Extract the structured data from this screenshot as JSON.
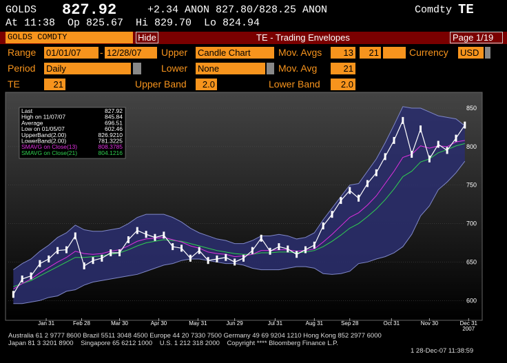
{
  "header": {
    "ticker": "GOLDS",
    "price": "827.92",
    "quote": "+2.34 ANON 827.80/828.25 ANON",
    "source": "Comdty",
    "function": "TE",
    "time_line": "At 11:38  Op 825.67  Hi 829.70  Lo 824.94"
  },
  "toolbar": {
    "security": "GOLDS COMDTY",
    "hide_button": "Hide",
    "title": "TE - Trading Envelopes",
    "page": "Page 1/19"
  },
  "form": {
    "range_label": "Range",
    "range_start": "01/01/07",
    "range_sep": "-",
    "range_end": "12/28/07",
    "upper_label": "Upper",
    "upper_value": "Candle Chart",
    "mov_avgs_label": "Mov. Avgs",
    "mov_avg_1": "13",
    "mov_avg_2": "21",
    "currency_label": "Currency",
    "currency_value": "USD",
    "period_label": "Period",
    "period_value": "Daily",
    "lower_label": "Lower",
    "lower_value": "None",
    "mov_avg_label": "Mov. Avg",
    "mov_avg_value": "21",
    "te_label": "TE",
    "te_value": "21",
    "upper_band_label": "Upper Band",
    "upper_band_value": "2.0",
    "lower_band_label": "Lower Band",
    "lower_band_value": "2.0"
  },
  "chart_data": {
    "type": "line",
    "x": [
      "2007-01-05",
      "2007-01-12",
      "2007-01-19",
      "2007-01-26",
      "2007-02-02",
      "2007-02-09",
      "2007-02-16",
      "2007-02-23",
      "2007-03-02",
      "2007-03-09",
      "2007-03-16",
      "2007-03-23",
      "2007-03-30",
      "2007-04-06",
      "2007-04-13",
      "2007-04-20",
      "2007-04-27",
      "2007-05-04",
      "2007-05-11",
      "2007-05-18",
      "2007-05-25",
      "2007-06-01",
      "2007-06-08",
      "2007-06-15",
      "2007-06-22",
      "2007-06-29",
      "2007-07-06",
      "2007-07-13",
      "2007-07-20",
      "2007-07-27",
      "2007-08-03",
      "2007-08-10",
      "2007-08-17",
      "2007-08-24",
      "2007-08-31",
      "2007-09-07",
      "2007-09-14",
      "2007-09-21",
      "2007-09-28",
      "2007-10-05",
      "2007-10-12",
      "2007-10-19",
      "2007-10-26",
      "2007-11-02",
      "2007-11-09",
      "2007-11-16",
      "2007-11-23",
      "2007-11-30",
      "2007-12-07",
      "2007-12-14",
      "2007-12-21",
      "2007-12-28"
    ],
    "series": [
      {
        "name": "Last",
        "color": "#ffffff",
        "last_label": "827.92",
        "values": [
          608,
          628,
          632,
          648,
          654,
          665,
          666,
          684,
          645,
          652,
          655,
          662,
          662,
          679,
          691,
          686,
          682,
          685,
          670,
          668,
          655,
          665,
          652,
          654,
          656,
          650,
          655,
          665,
          681,
          664,
          670,
          667,
          660,
          666,
          672,
          697,
          712,
          730,
          743,
          733,
          752,
          766,
          787,
          808,
          834,
          790,
          823,
          784,
          803,
          795,
          811,
          828
        ]
      },
      {
        "name": "UpperBand(2.00)",
        "color": "#8088c8",
        "last_label": "826.9210",
        "values": [
          640,
          648,
          654,
          664,
          672,
          682,
          688,
          698,
          692,
          690,
          690,
          692,
          694,
          700,
          708,
          712,
          712,
          712,
          708,
          702,
          694,
          688,
          684,
          680,
          678,
          674,
          674,
          678,
          684,
          684,
          686,
          684,
          680,
          682,
          688,
          705,
          720,
          735,
          750,
          752,
          768,
          784,
          805,
          828,
          852,
          850,
          850,
          845,
          840,
          838,
          836,
          827
        ]
      },
      {
        "name": "LowerBand(2.00)",
        "color": "#8088c8",
        "last_label": "781.3225",
        "values": [
          596,
          596,
          598,
          600,
          604,
          606,
          612,
          614,
          620,
          624,
          626,
          628,
          630,
          632,
          634,
          638,
          642,
          646,
          648,
          652,
          654,
          654,
          652,
          650,
          648,
          648,
          646,
          642,
          640,
          640,
          640,
          642,
          644,
          644,
          642,
          635,
          634,
          635,
          638,
          648,
          650,
          654,
          657,
          662,
          670,
          686,
          710,
          723,
          744,
          754,
          766,
          781
        ]
      },
      {
        "name": "SMAVG on Close(13)",
        "color": "#e030e0",
        "last_label": "808.3785",
        "values": [
          615,
          622,
          628,
          636,
          643,
          650,
          656,
          664,
          661,
          660,
          661,
          664,
          666,
          671,
          677,
          680,
          681,
          682,
          679,
          676,
          671,
          668,
          663,
          661,
          660,
          657,
          658,
          660,
          665,
          665,
          666,
          666,
          664,
          665,
          667,
          676,
          686,
          697,
          708,
          714,
          724,
          736,
          752,
          768,
          786,
          790,
          801,
          798,
          801,
          800,
          806,
          808
        ]
      },
      {
        "name": "SMAVG on Close(21)",
        "color": "#30d050",
        "last_label": "804.1216",
        "values": [
          618,
          622,
          626,
          632,
          638,
          644,
          650,
          656,
          656,
          657,
          658,
          660,
          662,
          666,
          671,
          675,
          677,
          679,
          678,
          677,
          674,
          671,
          668,
          665,
          663,
          661,
          660,
          660,
          662,
          662,
          663,
          663,
          662,
          663,
          665,
          670,
          677,
          685,
          694,
          700,
          709,
          719,
          731,
          745,
          761,
          768,
          780,
          784,
          792,
          796,
          801,
          804
        ]
      }
    ],
    "stats": [
      {
        "label": "High on 11/07/07",
        "value": "845.84"
      },
      {
        "label": "Average",
        "value": "696.51"
      },
      {
        "label": "Low on 01/05/07",
        "value": "602.46"
      }
    ],
    "band_fill": "#2a2e6a",
    "ylim": [
      577,
      867
    ],
    "yticks": [
      600,
      650,
      700,
      750,
      800,
      850
    ],
    "xlim": [
      "2007-01-01",
      "2008-01-08"
    ],
    "xticks": [
      {
        "value": "2007-01-31",
        "label": "Jan 31"
      },
      {
        "value": "2007-02-28",
        "label": "Feb 28"
      },
      {
        "value": "2007-03-30",
        "label": "Mar 30"
      },
      {
        "value": "2007-04-30",
        "label": "Apr 30"
      },
      {
        "value": "2007-05-31",
        "label": "May 31"
      },
      {
        "value": "2007-06-29",
        "label": "Jun 29"
      },
      {
        "value": "2007-07-31",
        "label": "Jul 31"
      },
      {
        "value": "2007-08-31",
        "label": "Aug 31"
      },
      {
        "value": "2007-09-28",
        "label": "Sep 28"
      },
      {
        "value": "2007-10-31",
        "label": "Oct 31"
      },
      {
        "value": "2007-11-30",
        "label": "Nov 30"
      },
      {
        "value": "2007-12-31",
        "label": "Dec 31"
      }
    ],
    "x_year_label": "2007",
    "grid": true
  },
  "footer": {
    "line1": "Australia 61 2 9777 8600 Brazil 5511 3048 4500 Europe 44 20 7330 7500 Germany 49 69 9204 1210 Hong Kong 852 2977 6000",
    "line2": "Japan 81 3 3201 8900    Singapore 65 6212 1000    U.S. 1 212 318 2000    Copyright **** Bloomberg Finance L.P.",
    "line3": "1 28-Dec-07 11:38:59"
  }
}
